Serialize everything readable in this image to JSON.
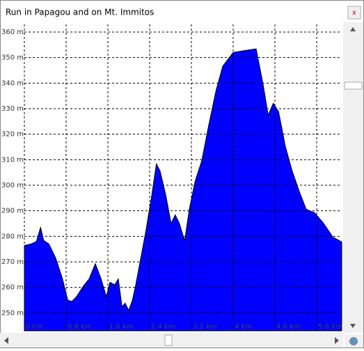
{
  "window": {
    "title": "Run in Papagou and on Mt. Immitos",
    "close": "x"
  },
  "chart_data": {
    "type": "area",
    "color": "#0000ff",
    "grid": true,
    "x": [
      0,
      0.13,
      0.23,
      0.31,
      0.37,
      0.47,
      0.6,
      0.73,
      0.83,
      0.91,
      1.0,
      1.13,
      1.24,
      1.36,
      1.47,
      1.57,
      1.64,
      1.73,
      1.8,
      1.87,
      1.93,
      2.0,
      2.07,
      2.13,
      2.23,
      2.33,
      2.44,
      2.53,
      2.6,
      2.71,
      2.81,
      2.89,
      2.97,
      3.07,
      3.16,
      3.27,
      3.4,
      3.53,
      3.67,
      3.8,
      4.0,
      4.27,
      4.44,
      4.57,
      4.67,
      4.77,
      4.87,
      5.0,
      5.13,
      5.27,
      5.4,
      5.56,
      5.73,
      5.91,
      6.08
    ],
    "values": [
      276.4,
      277,
      278,
      283.5,
      278.4,
      277,
      271.5,
      263.3,
      255,
      254.5,
      256.4,
      260.5,
      263.3,
      269.3,
      263.3,
      256.4,
      262,
      261,
      263.3,
      252.4,
      253.8,
      251,
      255,
      260.5,
      271.5,
      282.4,
      296,
      308.4,
      305.6,
      296,
      285,
      288.4,
      285,
      278.3,
      290.6,
      301.5,
      309.7,
      323.4,
      337,
      346.6,
      352,
      352.9,
      353.4,
      339.8,
      327.5,
      332.1,
      328.8,
      315.2,
      305.6,
      297.4,
      290.6,
      289.2,
      285.1,
      279.7,
      277.8
    ],
    "xlim": [
      0,
      6.08
    ],
    "ylim": [
      243,
      363
    ],
    "xticks": [
      {
        "value": 0,
        "label": "0 km"
      },
      {
        "value": 0.8,
        "label": "0.8 km"
      },
      {
        "value": 1.6,
        "label": "1.6 km"
      },
      {
        "value": 2.4,
        "label": "2.4 km"
      },
      {
        "value": 3.2,
        "label": "3.2 km"
      },
      {
        "value": 4,
        "label": "4 km"
      },
      {
        "value": 4.8,
        "label": "4.8 km"
      },
      {
        "value": 5.6,
        "label": "5.6 km"
      }
    ],
    "yticks": [
      {
        "value": 250,
        "label": "250 m"
      },
      {
        "value": 260,
        "label": "260 m"
      },
      {
        "value": 270,
        "label": "270 m"
      },
      {
        "value": 280,
        "label": "280 m"
      },
      {
        "value": 290,
        "label": "290 m"
      },
      {
        "value": 300,
        "label": "300 m"
      },
      {
        "value": 310,
        "label": "310 m"
      },
      {
        "value": 320,
        "label": "320 m"
      },
      {
        "value": 330,
        "label": "330 m"
      },
      {
        "value": 340,
        "label": "340 m"
      },
      {
        "value": 350,
        "label": "350 m"
      },
      {
        "value": 360,
        "label": "360 m"
      }
    ]
  }
}
